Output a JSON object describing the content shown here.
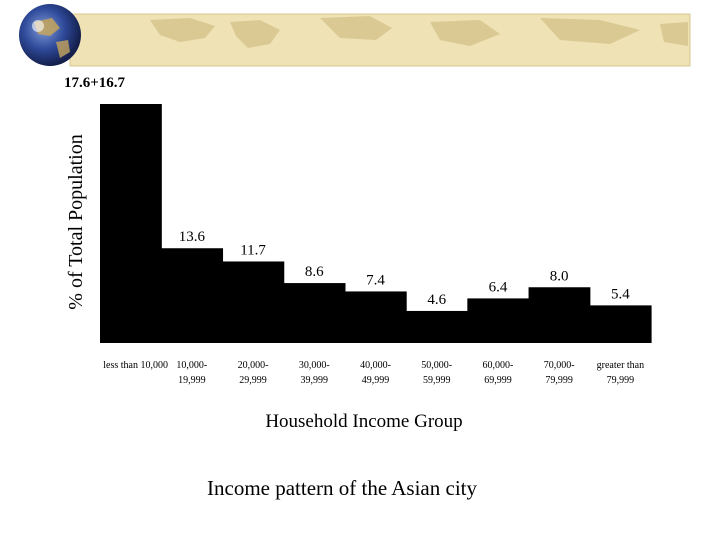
{
  "caption": "Income pattern of the Asian city",
  "colors": {
    "bars": "#000000",
    "banner": "#e8d8a0",
    "globe": "#2c3f8a"
  },
  "chart_data": {
    "type": "bar",
    "title": "",
    "xlabel": "Household Income Group",
    "ylabel": "% of Total Population",
    "categories": [
      [
        "less than 10,000"
      ],
      [
        "10,000-",
        "19,999"
      ],
      [
        "20,000-",
        "29,999"
      ],
      [
        "30,000-",
        "39,999"
      ],
      [
        "40,000-",
        "49,999"
      ],
      [
        "50,000-",
        "59,999"
      ],
      [
        "60,000-",
        "69,999"
      ],
      [
        "70,000-",
        "79,999"
      ],
      [
        "greater than",
        "79,999"
      ]
    ],
    "values": [
      34.3,
      13.6,
      11.7,
      8.6,
      7.4,
      4.6,
      6.4,
      8.0,
      5.4
    ],
    "value_labels": [
      "17.6+16.7",
      "13.6",
      "11.7",
      "8.6",
      "7.4",
      "4.6",
      "6.4",
      "8.0",
      "5.4"
    ],
    "ylim": [
      0,
      34.3
    ],
    "grid": false,
    "legend": "none"
  }
}
